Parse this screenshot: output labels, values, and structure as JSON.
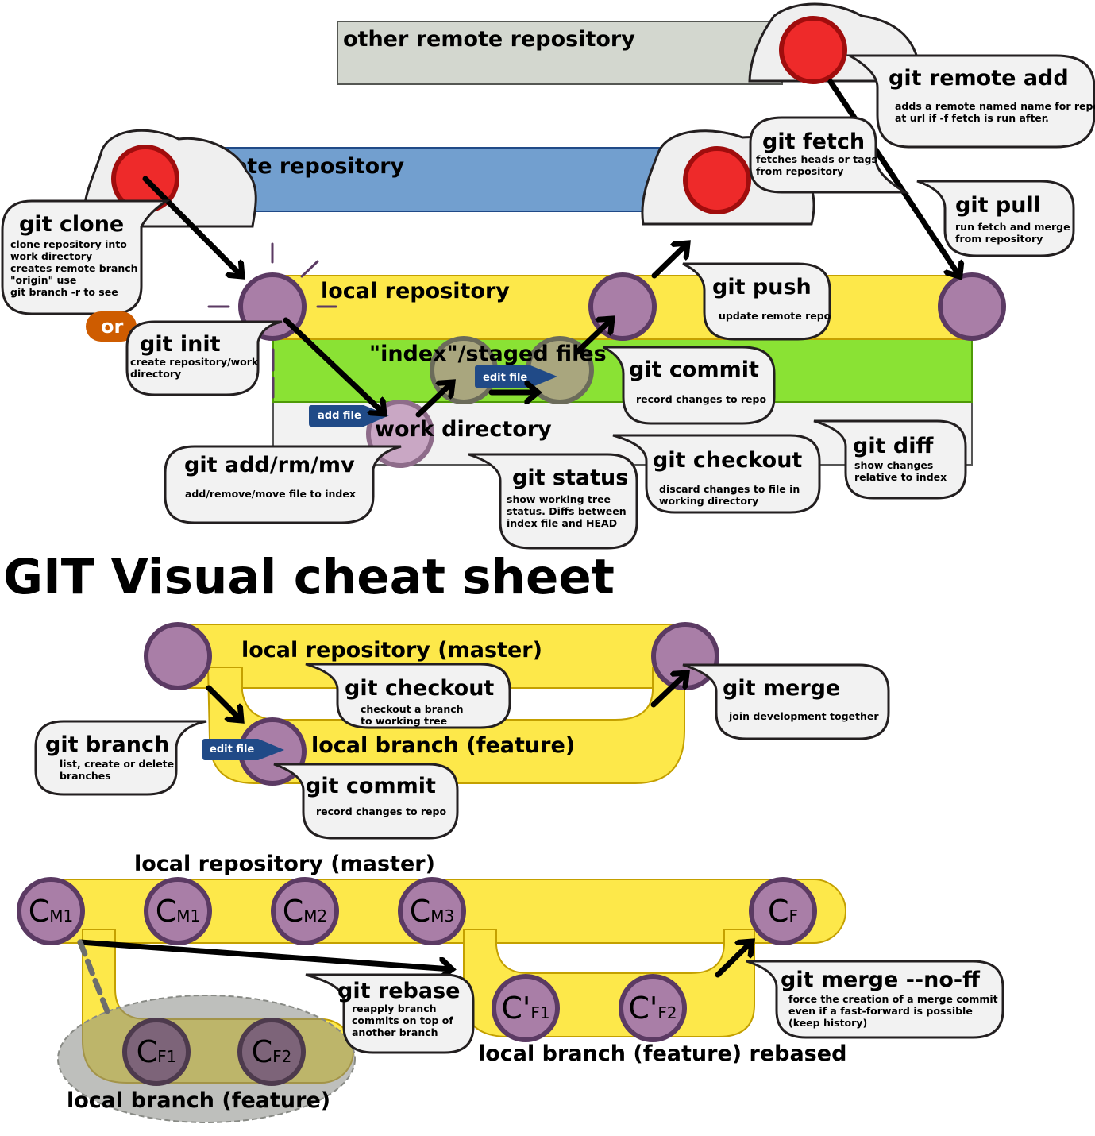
{
  "title": "GIT Visual cheat sheet",
  "areas": {
    "other_remote": "other remote repository",
    "remote": "remote repository",
    "local": "local repository",
    "index": "\"index\"/staged files",
    "work": "work directory",
    "or_badge": "or",
    "add_file_tag": "add file",
    "edit_file_tag": "edit file"
  },
  "commands": {
    "remote_add": {
      "name": "git remote add",
      "desc": [
        "adds a remote named name for repo",
        "at url if -f fetch is run after."
      ]
    },
    "fetch": {
      "name": "git fetch",
      "desc": [
        "fetches heads or tags",
        "from repository"
      ]
    },
    "pull": {
      "name": "git pull",
      "desc": [
        "run fetch and merge",
        "from repository"
      ]
    },
    "clone": {
      "name": "git clone",
      "desc": [
        "clone repository into",
        "work directory",
        "creates remote branch",
        "\"origin\" use",
        "git branch -r to see"
      ]
    },
    "init": {
      "name": "git init",
      "desc": [
        "create repository/work",
        "directory"
      ]
    },
    "push": {
      "name": "git push",
      "desc": [
        "update remote repo"
      ]
    },
    "commit": {
      "name": "git commit",
      "desc": [
        "record changes to repo"
      ]
    },
    "add": {
      "name": "git add/rm/mv",
      "desc": [
        "add/remove/move file to index"
      ]
    },
    "status": {
      "name": "git status",
      "desc": [
        "show working tree",
        "status.  Diffs between",
        "index file and HEAD"
      ]
    },
    "checkout": {
      "name": "git checkout",
      "desc": [
        "discard changes to file in",
        "working directory"
      ]
    },
    "diff": {
      "name": "git diff",
      "desc": [
        "show changes",
        "relative to index"
      ]
    }
  },
  "branching": {
    "master_label": "local repository (master)",
    "feature_label": "local branch (feature)",
    "edit_file_tag": "edit file",
    "checkout": {
      "name": "git checkout",
      "desc": [
        "checkout a branch",
        "to working tree"
      ]
    },
    "merge": {
      "name": "git merge",
      "desc": [
        "join development together"
      ]
    },
    "branch": {
      "name": "git branch",
      "desc": [
        "list, create or delete",
        "branches"
      ]
    },
    "commit": {
      "name": "git commit",
      "desc": [
        "record changes to repo"
      ]
    }
  },
  "rebase": {
    "master_label": "local repository (master)",
    "feature_label": "local branch (feature)",
    "rebased_label": "local branch (feature) rebased",
    "commits_master": [
      [
        "C",
        "M1"
      ],
      [
        "C",
        "M1"
      ],
      [
        "C",
        "M2"
      ],
      [
        "C",
        "M3"
      ],
      [
        "C",
        "F"
      ]
    ],
    "commits_feature": [
      [
        "C",
        "F1"
      ],
      [
        "C",
        "F2"
      ]
    ],
    "commits_rebased": [
      [
        "C'",
        "F1"
      ],
      [
        "C'",
        "F2"
      ]
    ],
    "rebase_cmd": {
      "name": "git rebase",
      "desc": [
        "reapply branch",
        "commits on top of",
        "another branch"
      ]
    },
    "merge_noff": {
      "name": "git merge --no-ff",
      "desc": [
        "force the creation of a merge commit",
        "even if a fast-forward is possible",
        "(keep history)"
      ]
    }
  },
  "colors": {
    "yellow": "#fde84a",
    "green": "#8ae234",
    "blue": "#729fcf",
    "grey_remote": "#d3d7cf",
    "purple": "#a97ea7",
    "red": "#ee2a2a",
    "tag_blue": "#204a87",
    "orange": "#ce5c00"
  }
}
